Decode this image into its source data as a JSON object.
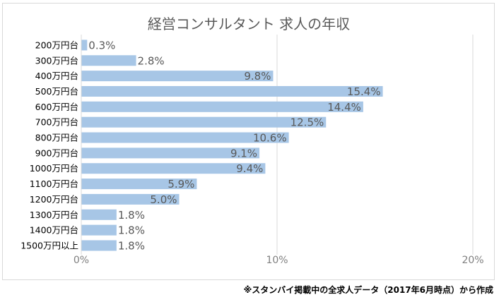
{
  "chart_data": {
    "type": "bar",
    "orientation": "horizontal",
    "title": "経営コンサルタント 求人の年収",
    "categories": [
      "200万円台",
      "300万円台",
      "400万円台",
      "500万円台",
      "600万円台",
      "700万円台",
      "800万円台",
      "900万円台",
      "1000万円台",
      "1100万円台",
      "1200万円台",
      "1300万円台",
      "1400万円台",
      "1500万円以上"
    ],
    "values": [
      0.3,
      2.8,
      9.8,
      15.4,
      14.4,
      12.5,
      10.6,
      9.1,
      9.4,
      5.9,
      5.0,
      1.8,
      1.8,
      1.8
    ],
    "data_labels": [
      "0.3%",
      "2.8%",
      "9.8%",
      "15.4%",
      "14.4%",
      "12.5%",
      "10.6%",
      "9.1%",
      "9.4%",
      "5.9%",
      "5.0%",
      "1.8%",
      "1.8%",
      "1.8%"
    ],
    "xlim": [
      0,
      20
    ],
    "x_ticks": [
      0,
      10,
      20
    ],
    "x_tick_labels": [
      "0%",
      "10%",
      "20%"
    ],
    "grid": true,
    "legend": "none",
    "bar_color": "#a7c6e6",
    "gridline_color": "#d9d9d9",
    "text_color": "#595959"
  },
  "footnote": "※スタンバイ掲載中の全求人データ（2017年6月時点）から作成"
}
